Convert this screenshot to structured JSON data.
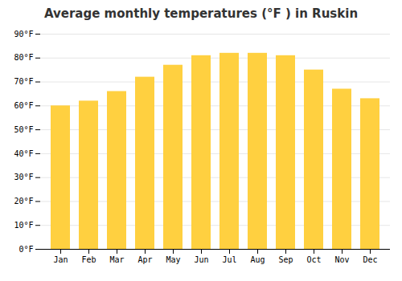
{
  "chart_data": {
    "type": "bar",
    "title": "Average monthly temperatures (°F ) in Ruskin",
    "categories": [
      "Jan",
      "Feb",
      "Mar",
      "Apr",
      "May",
      "Jun",
      "Jul",
      "Aug",
      "Sep",
      "Oct",
      "Nov",
      "Dec"
    ],
    "values": [
      60,
      62,
      66,
      72,
      77,
      81,
      82,
      82,
      81,
      75,
      67,
      63
    ],
    "color": "#FFD040",
    "ylim": [
      0,
      90
    ],
    "yticks": [
      {
        "value": 0,
        "label": "0°F"
      },
      {
        "value": 10,
        "label": "10°F"
      },
      {
        "value": 20,
        "label": "20°F"
      },
      {
        "value": 30,
        "label": "30°F"
      },
      {
        "value": 40,
        "label": "40°F"
      },
      {
        "value": 50,
        "label": "50°F"
      },
      {
        "value": 60,
        "label": "60°F"
      },
      {
        "value": 70,
        "label": "70°F"
      },
      {
        "value": 80,
        "label": "80°F"
      },
      {
        "value": 90,
        "label": "90°F"
      }
    ],
    "grid": true
  }
}
